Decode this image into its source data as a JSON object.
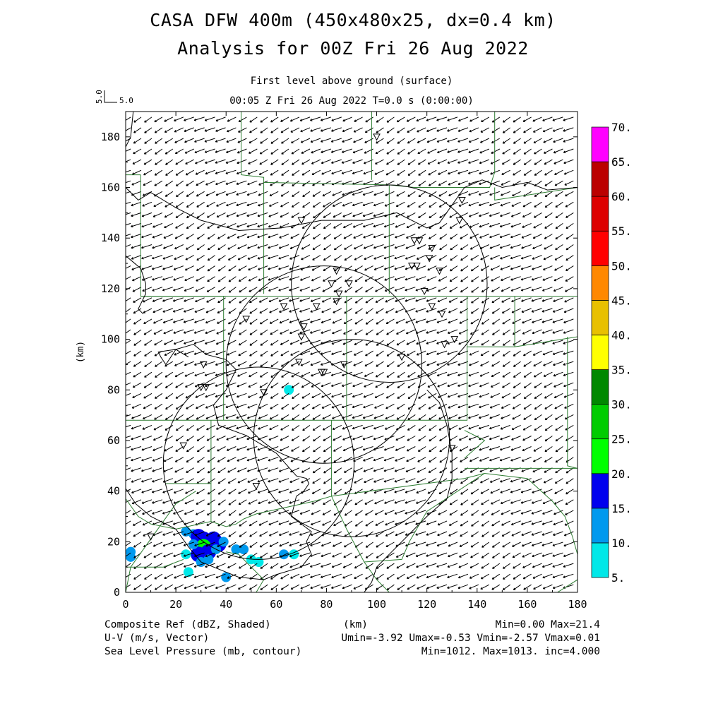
{
  "header": {
    "title_line1": "CASA DFW 400m (450x480x25, dx=0.4 km)",
    "title_line2": "Analysis for 00Z Fri 26 Aug 2022",
    "subtitle": "First level above ground (surface)",
    "time_line": "00:05 Z Fri 26 Aug 2022    T=0.0 s (0:00:00)"
  },
  "reference_vector": {
    "value_label": "5.0",
    "speed": 5.0
  },
  "footer": {
    "left1": "Composite Ref (dBZ, Shaded)",
    "left2": "U-V (m/s, Vector)",
    "left3": "Sea Level Pressure (mb, contour)",
    "center1": "(km)",
    "right1": "Min=0.00 Max=21.4",
    "right2": "Umin=-3.92 Umax=-0.53 Vmin=-2.57 Vmax=0.01",
    "right3": "Min=1012. Max=1013. inc=4.000"
  },
  "chart_data": {
    "type": "heatmap",
    "xlabel": "",
    "ylabel": "(km)",
    "xlim": [
      0,
      180
    ],
    "ylim": [
      0,
      190
    ],
    "x_ticks": [
      0,
      20,
      40,
      60,
      80,
      100,
      120,
      140,
      160,
      180
    ],
    "y_ticks": [
      0,
      20,
      40,
      60,
      80,
      100,
      120,
      140,
      160,
      180
    ],
    "colorbar": {
      "levels": [
        "5.",
        "10.",
        "15.",
        "20.",
        "25.",
        "30.",
        "35.",
        "40.",
        "45.",
        "50.",
        "55.",
        "60.",
        "65.",
        "70."
      ],
      "colors": [
        "#00e8e8",
        "#0099ee",
        "#0000ee",
        "#00ff00",
        "#00cc00",
        "#008800",
        "#ffff00",
        "#e8c000",
        "#ff8800",
        "#ff0000",
        "#dd0000",
        "#bb0000",
        "#ff00ff"
      ]
    },
    "wind": {
      "u_range": [
        -3.92,
        -0.53
      ],
      "v_range": [
        -2.57,
        0.01
      ]
    },
    "radar_rings": [
      {
        "center": [
          105,
          122
        ],
        "radius": 39
      },
      {
        "center": [
          79,
          90
        ],
        "radius": 39
      },
      {
        "center": [
          90,
          61
        ],
        "radius": 39
      },
      {
        "center": [
          53,
          51
        ],
        "radius": 38
      }
    ],
    "station_markers": [
      [
        100,
        180
      ],
      [
        70,
        147
      ],
      [
        134,
        155
      ],
      [
        133,
        147
      ],
      [
        115,
        139
      ],
      [
        117,
        139
      ],
      [
        122,
        136
      ],
      [
        121,
        132
      ],
      [
        114,
        129
      ],
      [
        116,
        129
      ],
      [
        125,
        127
      ],
      [
        84,
        127
      ],
      [
        82,
        122
      ],
      [
        89,
        122
      ],
      [
        119,
        119
      ],
      [
        85,
        118
      ],
      [
        84,
        115
      ],
      [
        63,
        113
      ],
      [
        76,
        113
      ],
      [
        122,
        113
      ],
      [
        126,
        110
      ],
      [
        48,
        108
      ],
      [
        71,
        105
      ],
      [
        70,
        101
      ],
      [
        127,
        98
      ],
      [
        131,
        100
      ],
      [
        110,
        93
      ],
      [
        31,
        90
      ],
      [
        69,
        91
      ],
      [
        87,
        90
      ],
      [
        78,
        87
      ],
      [
        79,
        87
      ],
      [
        30,
        81
      ],
      [
        32,
        81
      ],
      [
        55,
        79
      ],
      [
        23,
        58
      ],
      [
        130,
        57
      ],
      [
        52,
        42
      ],
      [
        10,
        22
      ]
    ],
    "reflectivity_cells": [
      {
        "x": 24,
        "y": 24,
        "dbz": 10
      },
      {
        "x": 27,
        "y": 23,
        "dbz": 13
      },
      {
        "x": 29,
        "y": 22,
        "dbz": 17
      },
      {
        "x": 31,
        "y": 21,
        "dbz": 19
      },
      {
        "x": 33,
        "y": 20,
        "dbz": 18
      },
      {
        "x": 35,
        "y": 21,
        "dbz": 16
      },
      {
        "x": 37,
        "y": 19,
        "dbz": 15
      },
      {
        "x": 39,
        "y": 20,
        "dbz": 12
      },
      {
        "x": 31,
        "y": 18,
        "dbz": 21.4
      },
      {
        "x": 29,
        "y": 15,
        "dbz": 16
      },
      {
        "x": 33,
        "y": 16,
        "dbz": 17
      },
      {
        "x": 36,
        "y": 17,
        "dbz": 14
      },
      {
        "x": 30,
        "y": 12,
        "dbz": 14
      },
      {
        "x": 33,
        "y": 13,
        "dbz": 12
      },
      {
        "x": 27,
        "y": 19,
        "dbz": 12
      },
      {
        "x": 24,
        "y": 15,
        "dbz": 9
      },
      {
        "x": 25,
        "y": 8,
        "dbz": 9
      },
      {
        "x": 40,
        "y": 6,
        "dbz": 13
      },
      {
        "x": 44,
        "y": 17,
        "dbz": 10
      },
      {
        "x": 47,
        "y": 17,
        "dbz": 12
      },
      {
        "x": 50,
        "y": 13,
        "dbz": 9
      },
      {
        "x": 53,
        "y": 12,
        "dbz": 8
      },
      {
        "x": 63,
        "y": 15,
        "dbz": 10
      },
      {
        "x": 67,
        "y": 15,
        "dbz": 9
      },
      {
        "x": 2,
        "y": 16,
        "dbz": 11
      },
      {
        "x": 2,
        "y": 14,
        "dbz": 10
      },
      {
        "x": 65,
        "y": 80,
        "dbz": 6
      }
    ],
    "pressure_contours": [
      {
        "points": [
          [
            3,
            190
          ],
          [
            2,
            180
          ],
          [
            0,
            176
          ]
        ]
      },
      {
        "points": [
          [
            0,
            160
          ],
          [
            5,
            155
          ],
          [
            10,
            158
          ],
          [
            20,
            152
          ],
          [
            30,
            147
          ],
          [
            45,
            143
          ],
          [
            62,
            144
          ],
          [
            78,
            147
          ],
          [
            95,
            147
          ],
          [
            108,
            150
          ],
          [
            120,
            144
          ],
          [
            125,
            146
          ],
          [
            130,
            153
          ],
          [
            135,
            160
          ],
          [
            142,
            163
          ],
          [
            150,
            160
          ],
          [
            160,
            162
          ],
          [
            168,
            159
          ],
          [
            180,
            160
          ]
        ]
      },
      {
        "points": [
          [
            0,
            133
          ],
          [
            6,
            128
          ],
          [
            8,
            122
          ],
          [
            8,
            118
          ],
          [
            5,
            112
          ],
          [
            7,
            110
          ]
        ]
      },
      {
        "points": [
          [
            25,
            93
          ],
          [
            20,
            96
          ],
          [
            16,
            90
          ],
          [
            14,
            93
          ],
          [
            13,
            95
          ],
          [
            20,
            96
          ],
          [
            27,
            98
          ],
          [
            32,
            94
          ],
          [
            40,
            92
          ],
          [
            44,
            88
          ],
          [
            40,
            80
          ],
          [
            35,
            74
          ],
          [
            37,
            66
          ],
          [
            48,
            62
          ],
          [
            60,
            55
          ],
          [
            68,
            46
          ],
          [
            72,
            45
          ],
          [
            73,
            43
          ],
          [
            71,
            40
          ],
          [
            68,
            38
          ],
          [
            66,
            30
          ],
          [
            74,
            24
          ],
          [
            72,
            20
          ],
          [
            74,
            15
          ],
          [
            70,
            10
          ],
          [
            60,
            7
          ],
          [
            55,
            5
          ],
          [
            45,
            6
          ],
          [
            40,
            8
          ],
          [
            30,
            12
          ],
          [
            25,
            18
          ],
          [
            20,
            25
          ],
          [
            10,
            30
          ],
          [
            4,
            35
          ],
          [
            0,
            41
          ]
        ]
      },
      {
        "points": [
          [
            120,
            80
          ],
          [
            125,
            75
          ],
          [
            128,
            66
          ],
          [
            130,
            55
          ],
          [
            130,
            45
          ],
          [
            128,
            37
          ],
          [
            120,
            30
          ],
          [
            110,
            20
          ],
          [
            105,
            15
          ],
          [
            100,
            10
          ],
          [
            98,
            4
          ],
          [
            95,
            0
          ]
        ]
      }
    ],
    "boundaries": [
      {
        "points": [
          [
            46,
            190
          ],
          [
            46,
            165
          ],
          [
            55,
            164
          ],
          [
            55,
            162
          ],
          [
            105,
            161
          ],
          [
            115,
            160
          ],
          [
            145,
            160
          ],
          [
            147,
            166
          ],
          [
            147,
            190
          ]
        ]
      },
      {
        "points": [
          [
            98,
            190
          ],
          [
            98,
            163
          ]
        ]
      },
      {
        "points": [
          [
            6,
            165
          ],
          [
            6,
            117
          ],
          [
            40,
            117
          ]
        ]
      },
      {
        "points": [
          [
            0,
            165
          ],
          [
            6,
            165
          ]
        ]
      },
      {
        "points": [
          [
            55,
            162
          ],
          [
            55,
            118
          ]
        ]
      },
      {
        "points": [
          [
            105,
            161
          ],
          [
            105,
            118
          ]
        ]
      },
      {
        "points": [
          [
            6,
            117
          ],
          [
            6,
            117
          ],
          [
            180,
            117
          ]
        ]
      },
      {
        "points": [
          [
            147,
            160
          ],
          [
            147,
            155
          ],
          [
            180,
            160
          ]
        ]
      },
      {
        "points": [
          [
            155,
            117
          ],
          [
            155,
            97
          ],
          [
            180,
            101
          ]
        ]
      },
      {
        "points": [
          [
            136,
            117
          ],
          [
            136,
            97
          ],
          [
            155,
            97
          ]
        ]
      },
      {
        "points": [
          [
            39,
            117
          ],
          [
            39,
            68
          ]
        ]
      },
      {
        "points": [
          [
            88,
            117
          ],
          [
            88,
            68
          ]
        ]
      },
      {
        "points": [
          [
            136,
            97
          ],
          [
            136,
            68
          ],
          [
            88,
            68
          ],
          [
            39,
            68
          ],
          [
            0,
            68
          ]
        ]
      },
      {
        "points": [
          [
            34,
            68
          ],
          [
            34,
            28
          ],
          [
            34,
            28
          ],
          [
            40,
            26
          ],
          [
            44,
            27
          ],
          [
            47,
            29
          ],
          [
            52,
            31
          ],
          [
            75,
            36
          ],
          [
            82,
            38
          ]
        ]
      },
      {
        "points": [
          [
            82,
            68
          ],
          [
            82,
            38
          ],
          [
            88,
            25
          ],
          [
            95,
            12
          ],
          [
            100,
            5
          ],
          [
            105,
            0
          ]
        ]
      },
      {
        "points": [
          [
            16,
            43
          ],
          [
            34,
            43
          ]
        ]
      },
      {
        "points": [
          [
            0,
            37
          ],
          [
            5,
            30
          ],
          [
            10,
            27
          ],
          [
            20,
            25
          ],
          [
            34,
            28
          ]
        ]
      },
      {
        "points": [
          [
            0,
            10
          ],
          [
            15,
            10
          ],
          [
            23,
            13
          ]
        ]
      },
      {
        "points": [
          [
            0,
            0
          ],
          [
            2,
            10
          ],
          [
            15,
            28
          ],
          [
            20,
            35
          ],
          [
            28,
            40
          ]
        ]
      },
      {
        "points": [
          [
            52,
            0
          ],
          [
            55,
            5
          ],
          [
            50,
            10
          ],
          [
            48,
            12
          ],
          [
            45,
            15
          ],
          [
            40,
            16
          ]
        ]
      },
      {
        "points": [
          [
            82,
            38
          ],
          [
            135,
            45
          ],
          [
            143,
            47
          ]
        ]
      },
      {
        "points": [
          [
            95,
            12
          ],
          [
            110,
            13
          ],
          [
            113,
            20
          ],
          [
            120,
            32
          ],
          [
            143,
            47
          ]
        ]
      },
      {
        "points": [
          [
            143,
            47
          ],
          [
            160,
            45
          ],
          [
            170,
            36
          ],
          [
            175,
            30
          ],
          [
            178,
            22
          ],
          [
            180,
            15
          ]
        ]
      },
      {
        "points": [
          [
            135,
            49
          ],
          [
            180,
            49
          ],
          [
            176,
            50
          ],
          [
            176,
            101
          ]
        ]
      },
      {
        "points": [
          [
            135,
            64
          ],
          [
            143,
            60
          ],
          [
            135,
            53
          ]
        ]
      },
      {
        "points": [
          [
            180,
            5
          ],
          [
            172,
            0
          ]
        ]
      }
    ]
  }
}
